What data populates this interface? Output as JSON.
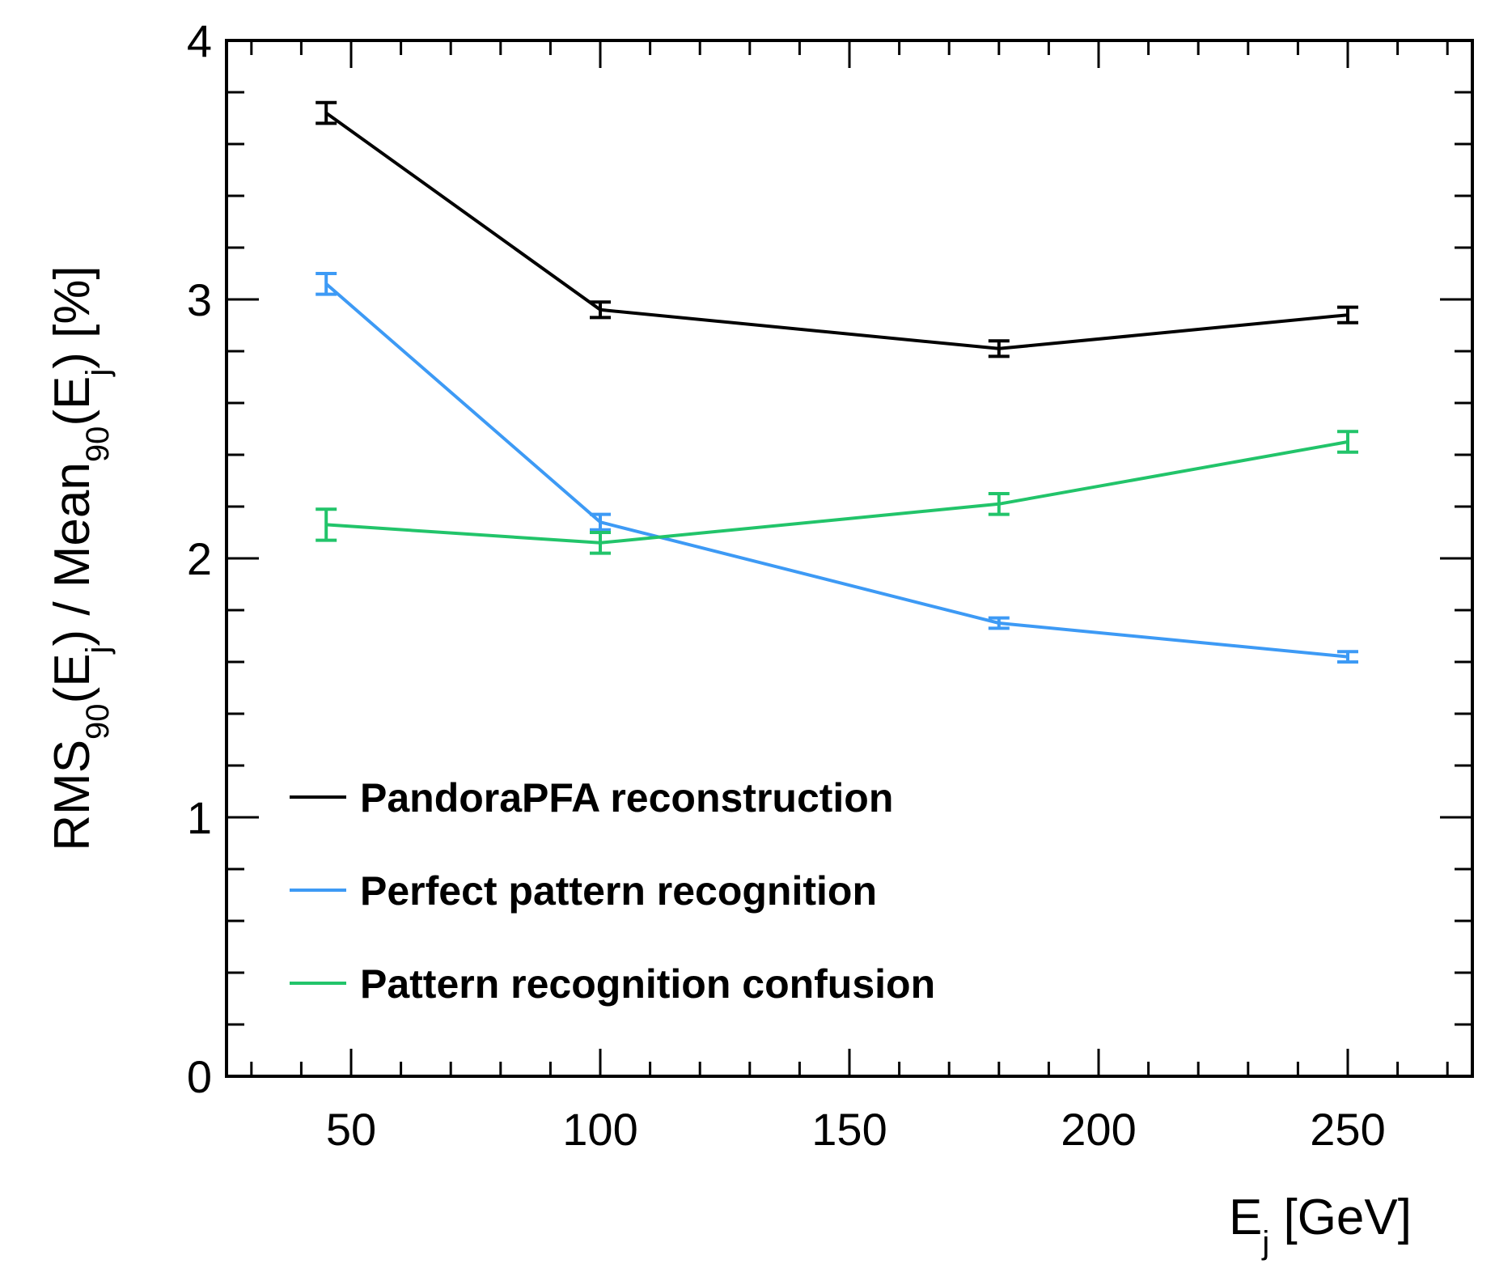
{
  "chart_data": {
    "type": "line",
    "title": "",
    "xlabel": {
      "main": "E",
      "sub": "j",
      "rest": " [GeV]"
    },
    "ylabel": {
      "p1": "RMS",
      "s1": "90",
      "p2": "(E",
      "s2": "j",
      "p3": ") / Mean",
      "s3": "90",
      "p4": "(E",
      "s4": "j",
      "p5": ") [%]"
    },
    "xlim": [
      25,
      275
    ],
    "ylim": [
      0,
      4
    ],
    "x_major_ticks": [
      50,
      100,
      150,
      200,
      250
    ],
    "x_tick_labels": [
      "50",
      "100",
      "150",
      "200",
      "250"
    ],
    "y_major_ticks": [
      0,
      1,
      2,
      3,
      4
    ],
    "y_tick_labels": [
      "0",
      "1",
      "2",
      "3",
      "4"
    ],
    "grid": false,
    "legend_position": "bottom-left",
    "series": [
      {
        "name": "PandoraPFA reconstruction",
        "color": "#000000",
        "x": [
          45,
          100,
          180,
          250
        ],
        "y": [
          3.72,
          2.96,
          2.81,
          2.94
        ],
        "err": [
          0.04,
          0.03,
          0.03,
          0.03
        ]
      },
      {
        "name": "Perfect pattern recognition",
        "color": "#3d9af5",
        "x": [
          45,
          100,
          180,
          250
        ],
        "y": [
          3.06,
          2.14,
          1.75,
          1.62
        ],
        "err": [
          0.04,
          0.03,
          0.02,
          0.02
        ]
      },
      {
        "name": "Pattern recognition confusion",
        "color": "#22c46a",
        "x": [
          45,
          100,
          180,
          250
        ],
        "y": [
          2.13,
          2.06,
          2.21,
          2.45
        ],
        "err": [
          0.06,
          0.04,
          0.04,
          0.04
        ]
      }
    ]
  }
}
